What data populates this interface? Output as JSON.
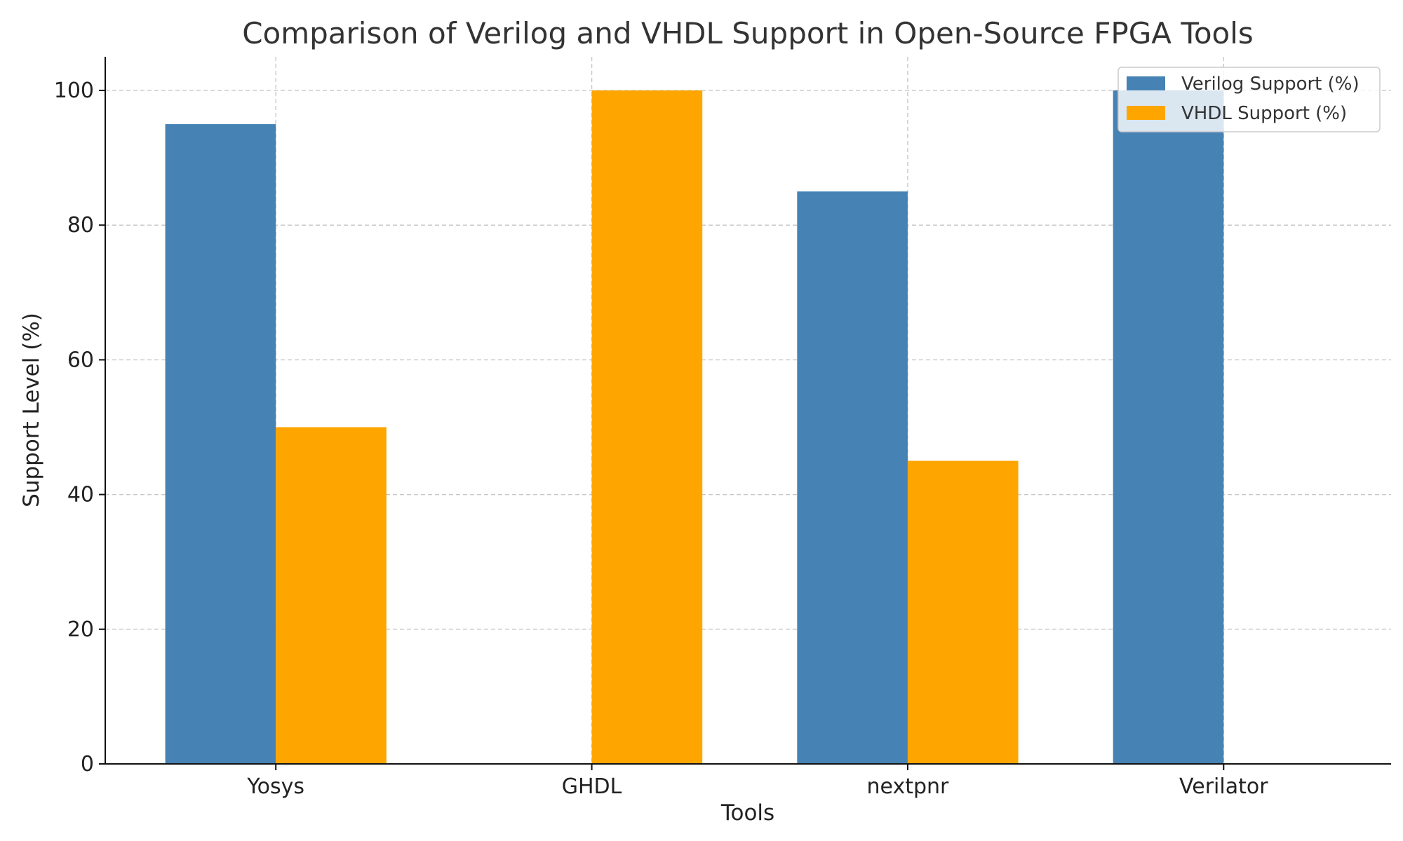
{
  "chart_data": {
    "type": "bar",
    "title": "Comparison of Verilog and VHDL Support in Open-Source FPGA Tools",
    "xlabel": "Tools",
    "ylabel": "Support Level (%)",
    "categories": [
      "Yosys",
      "GHDL",
      "nextpnr",
      "Verilator"
    ],
    "series": [
      {
        "name": "Verilog Support (%)",
        "color": "#4682b4",
        "values": [
          95,
          0,
          85,
          100
        ]
      },
      {
        "name": "VHDL Support (%)",
        "color": "#ffa500",
        "values": [
          50,
          100,
          45,
          0
        ]
      }
    ],
    "ylim": [
      0,
      105
    ],
    "yticks": [
      0,
      20,
      40,
      60,
      80,
      100
    ],
    "grid": true,
    "legend_position": "top-right"
  }
}
